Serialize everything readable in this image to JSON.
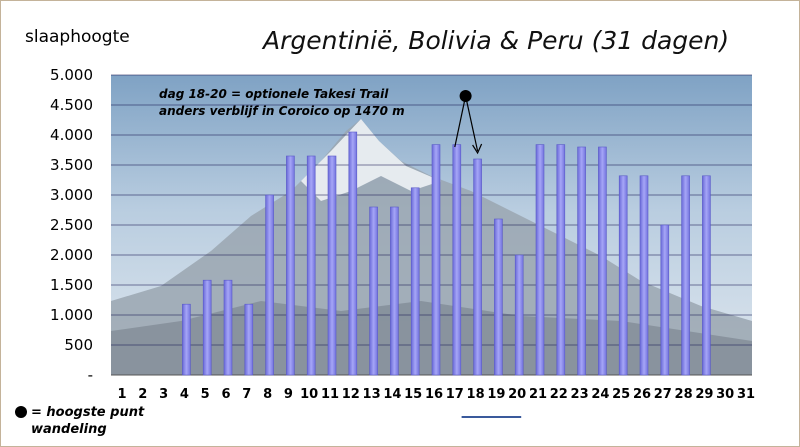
{
  "chart_data": {
    "type": "bar",
    "title": "Argentinië, Bolivia & Peru (31 dagen)",
    "ylabel": "slaaphoogte",
    "xlabel": "",
    "ylim": [
      0,
      5000
    ],
    "yticks": [
      0,
      500,
      1000,
      1500,
      2000,
      2500,
      3000,
      3500,
      4000,
      4500,
      5000
    ],
    "ytick_labels": [
      "-",
      "500",
      "1.000",
      "1.500",
      "2.000",
      "2.500",
      "3.000",
      "3.500",
      "4.000",
      "4.500",
      "5.000"
    ],
    "categories": [
      "1",
      "2",
      "3",
      "4",
      "5",
      "6",
      "7",
      "8",
      "9",
      "10",
      "11",
      "12",
      "13",
      "14",
      "15",
      "16",
      "17",
      "18",
      "19",
      "20",
      "21",
      "22",
      "23",
      "24",
      "25",
      "26",
      "27",
      "28",
      "29",
      "30",
      "31"
    ],
    "values": [
      0,
      0,
      0,
      1180,
      1580,
      1580,
      1180,
      3000,
      3650,
      3650,
      3650,
      4050,
      2800,
      2800,
      3120,
      3840,
      3840,
      3600,
      2600,
      2000,
      3840,
      3840,
      3800,
      3800,
      3320,
      3320,
      2500,
      3320,
      3320,
      0,
      0
    ],
    "grid": true,
    "annotation": {
      "lines": [
        "dag 18-20 = optionele Takesi Trail",
        "anders verblijf in Coroico op 1470 m"
      ],
      "marker_day": 18,
      "marker_value": 4650
    },
    "legend": {
      "marker": "filled-circle",
      "text": "= hoogste punt wandeling"
    },
    "range_marker": {
      "from_day": 18,
      "to_day": 20
    },
    "colors": {
      "bar": "#8f8fef",
      "bar_edge": "#5a5ac8",
      "grid": "#1a1a55",
      "marker": "#000000"
    }
  }
}
